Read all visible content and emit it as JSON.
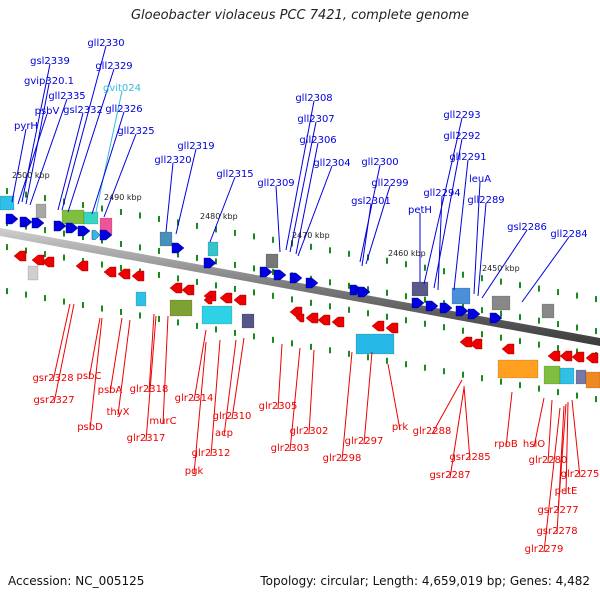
{
  "title": "Gloeobacter violaceus PCC 7421, complete genome",
  "accession": "Accession: NC_005125",
  "summary": "Topology: circular; Length: 4,659,019 bp; Genes: 4,482",
  "colors": {
    "forward": "#0000dd",
    "reverse": "#ee0000",
    "forward_special": "#33bbdd",
    "backbone": "#888888",
    "tick": "#1a8a1a"
  },
  "scale_labels": [
    "2500 kbp",
    "2490 kbp",
    "2480 kbp",
    "2470 kbp",
    "2460 kbp",
    "2450 kbp"
  ],
  "forward_genes": [
    "gsl2339",
    "gvip320.1",
    "gll2335",
    "psbV",
    "pyrH",
    "gll2330",
    "gll2329",
    "gsl2332",
    "gvit024",
    "gll2326",
    "gll2325",
    "gll2320",
    "gll2319",
    "gll2315",
    "gll2308",
    "gll2307",
    "gll2306",
    "gll2309",
    "gll2304",
    "gll2300",
    "gll2299",
    "gsl2301",
    "petH",
    "gll2293",
    "gll2292",
    "gll2291",
    "leuA",
    "gll2294",
    "gll2289",
    "gsl2286",
    "gll2284"
  ],
  "reverse_genes": [
    "gsr2328",
    "gsr2327",
    "psbC",
    "psbA",
    "psbD",
    "thyX",
    "glr2318",
    "glr2317",
    "murC",
    "glr2314",
    "glr2310",
    "acp",
    "glr2312",
    "pgk",
    "glr2305",
    "glr2303",
    "glr2302",
    "glr2298",
    "glr2297",
    "prk",
    "glr2288",
    "gsr2285",
    "gsr2287",
    "rpoB",
    "hslO",
    "glr2280",
    "glr2275",
    "petE",
    "gsr2277",
    "gsr2278",
    "glr2279"
  ]
}
